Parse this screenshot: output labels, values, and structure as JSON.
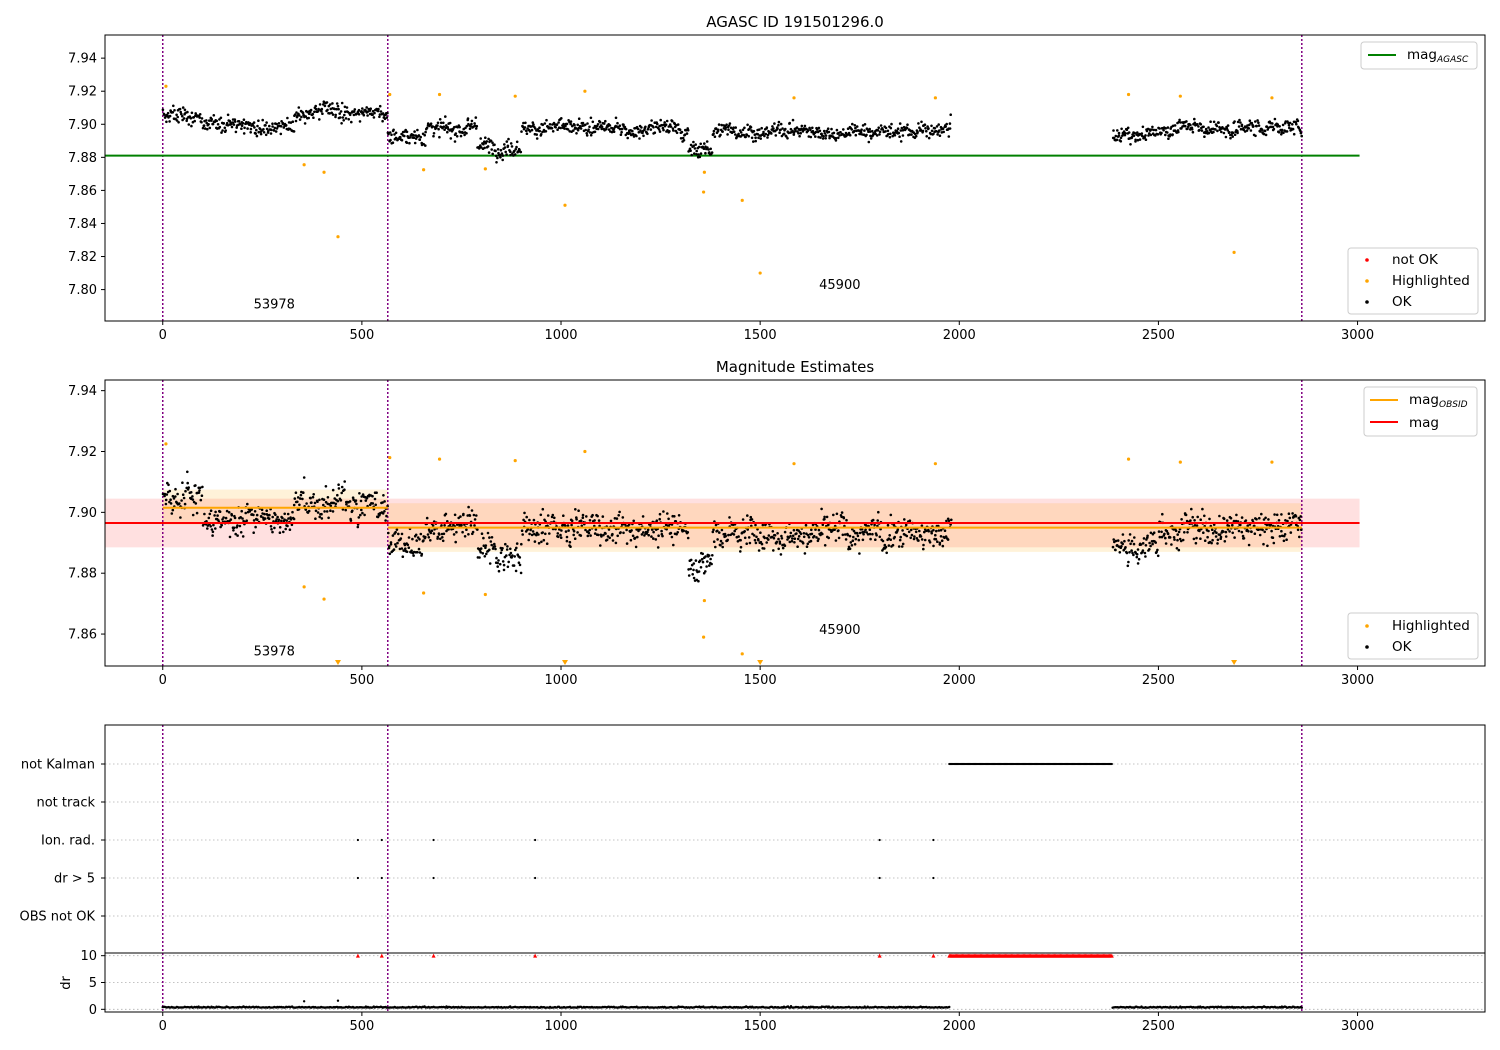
{
  "chart_data": [
    {
      "type": "scatter",
      "title": "AGASC ID 191501296.0",
      "xlim": [
        -145,
        3320
      ],
      "ylim": [
        7.781,
        7.954
      ],
      "xticks": [
        0,
        500,
        1000,
        1500,
        2000,
        2500,
        3000
      ],
      "yticks": [
        7.8,
        7.82,
        7.84,
        7.86,
        7.88,
        7.9,
        7.92,
        7.94
      ],
      "vlines": [
        0,
        565,
        2860
      ],
      "annotations": [
        {
          "text": "53978",
          "x": 280,
          "y": 7.7885
        },
        {
          "text": "45900",
          "x": 1700,
          "y": 7.8005
        }
      ],
      "lines": [
        {
          "name": "mag",
          "name_sub": "AGASC",
          "color": "#008000",
          "x": [
            -145,
            3005
          ],
          "y": [
            7.881,
            7.881
          ]
        }
      ],
      "legend_lines": [
        "mag_AGASC"
      ],
      "legend_markers": [
        "not OK",
        "Highlighted",
        "OK"
      ],
      "series": [
        {
          "name": "OK",
          "color": "#000000",
          "segments": [
            {
              "x0": 0,
              "x1": 100,
              "level": 7.906
            },
            {
              "x0": 100,
              "x1": 330,
              "level": 7.9
            },
            {
              "x0": 330,
              "x1": 565,
              "level": 7.906
            },
            {
              "x0": 565,
              "x1": 660,
              "level": 7.893
            },
            {
              "x0": 660,
              "x1": 790,
              "level": 7.898
            },
            {
              "x0": 790,
              "x1": 900,
              "level": 7.887
            },
            {
              "x0": 900,
              "x1": 1320,
              "level": 7.897
            },
            {
              "x0": 1320,
              "x1": 1380,
              "level": 7.884
            },
            {
              "x0": 1380,
              "x1": 1980,
              "level": 7.896
            },
            {
              "x0": 2385,
              "x1": 2500,
              "level": 7.893
            },
            {
              "x0": 2500,
              "x1": 2860,
              "level": 7.898
            }
          ]
        },
        {
          "name": "Highlighted",
          "color": "#ffa500",
          "x": [
            8,
            355,
            405,
            440,
            570,
            655,
            695,
            810,
            885,
            1010,
            1060,
            1360,
            1358,
            1455,
            1500,
            1585,
            1940,
            2425,
            2555,
            2690,
            2785
          ],
          "y": [
            7.923,
            7.8755,
            7.871,
            7.832,
            7.918,
            7.8725,
            7.918,
            7.873,
            7.917,
            7.851,
            7.92,
            7.871,
            7.859,
            7.854,
            7.81,
            7.916,
            7.916,
            7.918,
            7.917,
            7.8225,
            7.916
          ]
        }
      ]
    },
    {
      "type": "scatter",
      "title": "Magnitude Estimates",
      "xlim": [
        -145,
        3320
      ],
      "ylim": [
        7.8495,
        7.9435
      ],
      "xticks": [
        0,
        500,
        1000,
        1500,
        2000,
        2500,
        3000
      ],
      "yticks": [
        7.86,
        7.88,
        7.9,
        7.92,
        7.94
      ],
      "vlines": [
        0,
        565,
        2860
      ],
      "annotations": [
        {
          "text": "53978",
          "x": 280,
          "y": 7.853
        },
        {
          "text": "45900",
          "x": 1700,
          "y": 7.86
        }
      ],
      "bands": [
        {
          "x0": -145,
          "x1": 3005,
          "y0": 7.8885,
          "y1": 7.9045,
          "color": "#ff0000",
          "opacity": 0.12
        },
        {
          "x0": 0,
          "x1": 565,
          "y0": 7.896,
          "y1": 7.9075,
          "color": "#ffa500",
          "opacity": 0.15
        },
        {
          "x0": 565,
          "x1": 2860,
          "y0": 7.887,
          "y1": 7.903,
          "color": "#ffa500",
          "opacity": 0.15
        }
      ],
      "lines": [
        {
          "name": "mag",
          "name_sub": "OBSID",
          "color": "#ffa500",
          "x": [
            0,
            565
          ],
          "y": [
            7.9015,
            7.9015
          ]
        },
        {
          "name": "",
          "name_sub": "",
          "color": "#ffa500",
          "x": [
            565,
            2860
          ],
          "y": [
            7.895,
            7.895
          ]
        },
        {
          "name": "mag",
          "name_sub": "",
          "color": "#ff0000",
          "x": [
            -145,
            3005
          ],
          "y": [
            7.8965,
            7.8965
          ]
        }
      ],
      "legend_lines": [
        "mag_OBSID",
        "mag"
      ],
      "legend_markers": [
        "Highlighted",
        "OK"
      ],
      "series": [
        {
          "name": "OK",
          "color": "#000000",
          "segments": [
            {
              "x0": 0,
              "x1": 100,
              "level": 7.904
            },
            {
              "x0": 100,
              "x1": 330,
              "level": 7.897
            },
            {
              "x0": 330,
              "x1": 565,
              "level": 7.903
            },
            {
              "x0": 565,
              "x1": 660,
              "level": 7.889
            },
            {
              "x0": 660,
              "x1": 790,
              "level": 7.895
            },
            {
              "x0": 790,
              "x1": 900,
              "level": 7.885
            },
            {
              "x0": 900,
              "x1": 1320,
              "level": 7.895
            },
            {
              "x0": 1320,
              "x1": 1380,
              "level": 7.882
            },
            {
              "x0": 1380,
              "x1": 1980,
              "level": 7.894
            },
            {
              "x0": 2385,
              "x1": 2500,
              "level": 7.889
            },
            {
              "x0": 2500,
              "x1": 2860,
              "level": 7.895
            }
          ]
        },
        {
          "name": "Highlighted",
          "color": "#ffa500",
          "x": [
            8,
            355,
            405,
            570,
            655,
            695,
            810,
            885,
            1060,
            1360,
            1358,
            1455,
            1585,
            1940,
            2425,
            2555,
            2785
          ],
          "y": [
            7.9225,
            7.8755,
            7.8715,
            7.918,
            7.8735,
            7.9175,
            7.873,
            7.917,
            7.92,
            7.871,
            7.859,
            7.8535,
            7.916,
            7.916,
            7.9175,
            7.9165,
            7.9165
          ]
        },
        {
          "name": "Highlighted (below axis)",
          "color": "#ffa500",
          "x": [
            440,
            1010,
            1500,
            2690
          ],
          "y": [
            7.8505,
            7.8505,
            7.8505,
            7.8505
          ]
        }
      ]
    },
    {
      "type": "scatter",
      "title": "",
      "xlim": [
        -145,
        3320
      ],
      "xticks": [
        0,
        500,
        1000,
        1500,
        2000,
        2500,
        3000
      ],
      "vlines": [
        0,
        565,
        2860
      ],
      "categories": [
        "not Kalman",
        "not track",
        "Ion. rad.",
        "dr > 5",
        "OBS not OK"
      ],
      "flags": {
        "not Kalman": {
          "x0": 1975,
          "x1": 2385
        },
        "Ion. rad.": {
          "x": [
            490,
            550,
            680,
            935,
            1800,
            1935
          ]
        },
        "dr > 5": {
          "x": [
            490,
            550,
            680,
            935,
            1800,
            1935
          ]
        }
      }
    },
    {
      "type": "line",
      "ylabel": "dr",
      "xlim": [
        -145,
        3320
      ],
      "ylim": [
        -0.5,
        10.5
      ],
      "xticks": [
        0,
        500,
        1000,
        1500,
        2000,
        2500,
        3000
      ],
      "yticks": [
        0,
        5,
        10
      ],
      "vlines": [
        0,
        565,
        2860
      ],
      "series": [
        {
          "name": "dr",
          "color": "#000000",
          "segments": [
            {
              "x0": 0,
              "x1": 1975,
              "level": 0.3
            },
            {
              "x0": 2385,
              "x1": 2860,
              "level": 0.3
            }
          ]
        },
        {
          "name": "dr > 5",
          "color": "#ff0000",
          "x": [
            490,
            550,
            680,
            935,
            1800,
            1935
          ],
          "y": [
            10,
            10,
            10,
            10,
            10,
            10
          ],
          "clip_x0": 1975,
          "clip_x1": 2385,
          "clip_level": 10
        }
      ],
      "extra_points": {
        "x": [
          355,
          440
        ],
        "y": [
          1.5,
          1.6
        ]
      }
    }
  ]
}
